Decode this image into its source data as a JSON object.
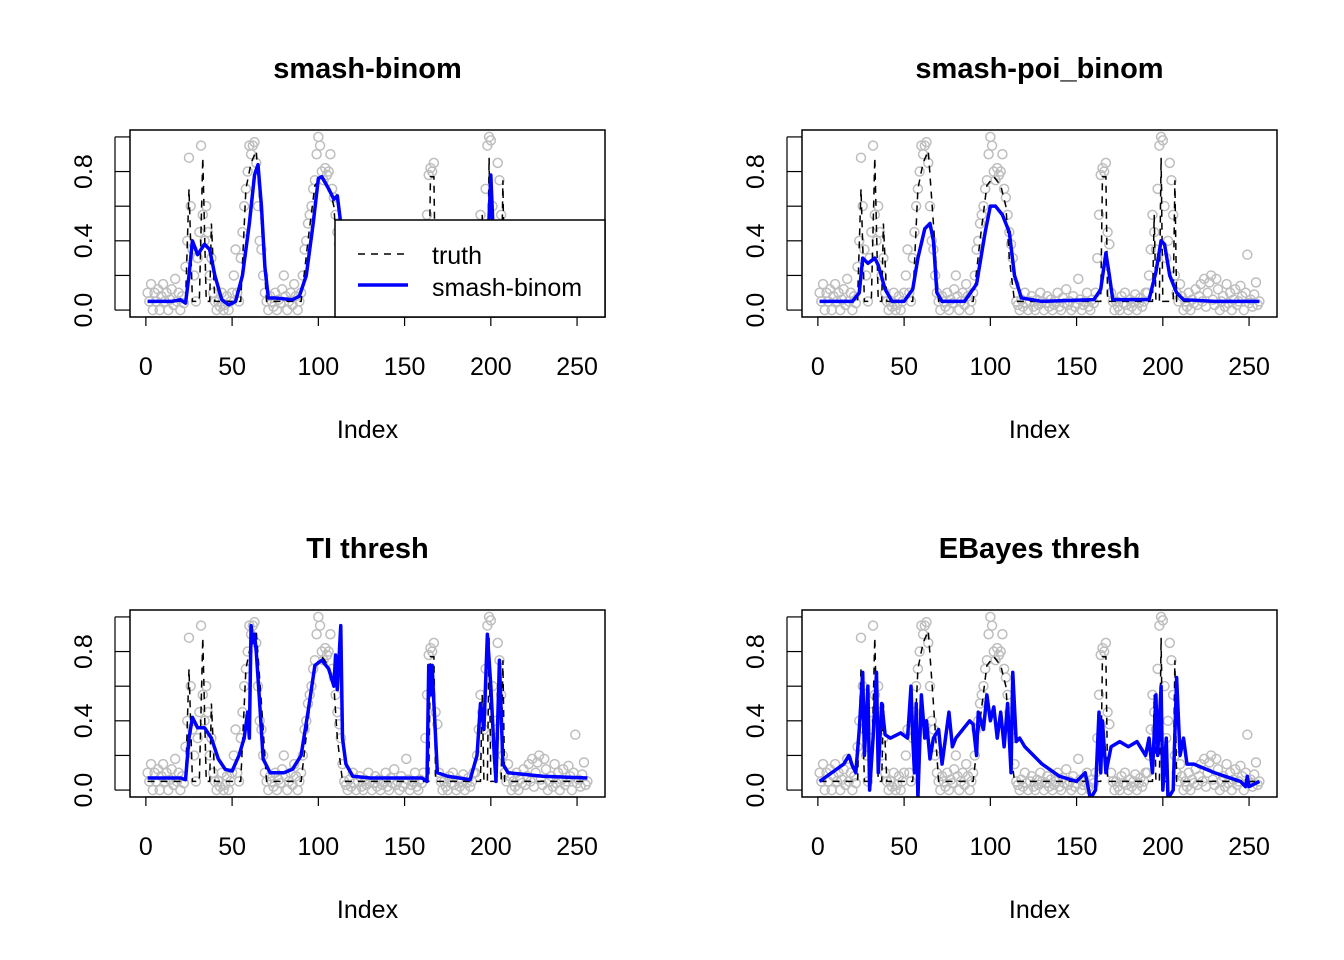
{
  "chart_data": [
    {
      "type": "line",
      "title": "smash-binom",
      "xlabel": "Index",
      "ylabel": "",
      "xlim": [
        1,
        256
      ],
      "ylim": [
        0,
        1
      ],
      "x_ticks": [
        "0",
        "50",
        "100",
        "150",
        "200",
        "250"
      ],
      "y_ticks": [
        "0.0",
        "0.4",
        "0.8"
      ],
      "legend": {
        "position": "bottom-right",
        "entries": [
          "truth",
          "smash-binom"
        ]
      },
      "estimate": [
        [
          1,
          0.05
        ],
        [
          15,
          0.05
        ],
        [
          20,
          0.06
        ],
        [
          23,
          0.04
        ],
        [
          25,
          0.2
        ],
        [
          27,
          0.4
        ],
        [
          30,
          0.32
        ],
        [
          34,
          0.38
        ],
        [
          37,
          0.35
        ],
        [
          40,
          0.2
        ],
        [
          44,
          0.06
        ],
        [
          48,
          0.03
        ],
        [
          52,
          0.05
        ],
        [
          56,
          0.2
        ],
        [
          60,
          0.5
        ],
        [
          63,
          0.78
        ],
        [
          65,
          0.84
        ],
        [
          67,
          0.6
        ],
        [
          69,
          0.25
        ],
        [
          71,
          0.07
        ],
        [
          75,
          0.07
        ],
        [
          85,
          0.06
        ],
        [
          89,
          0.08
        ],
        [
          93,
          0.2
        ],
        [
          97,
          0.5
        ],
        [
          100,
          0.76
        ],
        [
          102,
          0.77
        ],
        [
          106,
          0.7
        ],
        [
          109,
          0.64
        ],
        [
          111,
          0.66
        ],
        [
          113,
          0.5
        ],
        [
          116,
          0.2
        ],
        [
          120,
          0.08
        ],
        [
          160,
          0.06
        ],
        [
          164,
          0.1
        ],
        [
          167,
          0.3
        ],
        [
          170,
          0.08
        ],
        [
          195,
          0.06
        ],
        [
          198,
          0.3
        ],
        [
          200,
          0.78
        ],
        [
          202,
          0.3
        ],
        [
          205,
          0.12
        ],
        [
          210,
          0.08
        ],
        [
          256,
          0.05
        ]
      ]
    },
    {
      "type": "line",
      "title": "smash-poi_binom",
      "xlabel": "Index",
      "ylabel": "",
      "xlim": [
        1,
        256
      ],
      "ylim": [
        0,
        1
      ],
      "x_ticks": [
        "0",
        "50",
        "100",
        "150",
        "200",
        "250"
      ],
      "y_ticks": [
        "0.0",
        "0.4",
        "0.8"
      ],
      "estimate": [
        [
          1,
          0.05
        ],
        [
          20,
          0.05
        ],
        [
          24,
          0.1
        ],
        [
          26,
          0.3
        ],
        [
          29,
          0.27
        ],
        [
          33,
          0.3
        ],
        [
          35,
          0.26
        ],
        [
          39,
          0.12
        ],
        [
          43,
          0.05
        ],
        [
          50,
          0.05
        ],
        [
          55,
          0.12
        ],
        [
          58,
          0.3
        ],
        [
          62,
          0.47
        ],
        [
          65,
          0.5
        ],
        [
          67,
          0.4
        ],
        [
          69,
          0.1
        ],
        [
          72,
          0.05
        ],
        [
          85,
          0.05
        ],
        [
          92,
          0.15
        ],
        [
          97,
          0.45
        ],
        [
          100,
          0.6
        ],
        [
          103,
          0.6
        ],
        [
          107,
          0.55
        ],
        [
          111,
          0.45
        ],
        [
          114,
          0.2
        ],
        [
          118,
          0.07
        ],
        [
          130,
          0.05
        ],
        [
          160,
          0.06
        ],
        [
          164,
          0.12
        ],
        [
          167,
          0.33
        ],
        [
          169,
          0.2
        ],
        [
          171,
          0.06
        ],
        [
          192,
          0.06
        ],
        [
          196,
          0.22
        ],
        [
          199,
          0.4
        ],
        [
          201,
          0.38
        ],
        [
          204,
          0.2
        ],
        [
          208,
          0.1
        ],
        [
          212,
          0.06
        ],
        [
          230,
          0.05
        ],
        [
          256,
          0.05
        ]
      ]
    },
    {
      "type": "line",
      "title": "TI thresh",
      "xlabel": "Index",
      "ylabel": "",
      "xlim": [
        1,
        256
      ],
      "ylim": [
        0,
        1
      ],
      "x_ticks": [
        "0",
        "50",
        "100",
        "150",
        "200",
        "250"
      ],
      "y_ticks": [
        "0.0",
        "0.4",
        "0.8"
      ],
      "estimate": [
        [
          1,
          0.07
        ],
        [
          20,
          0.07
        ],
        [
          23,
          0.06
        ],
        [
          25,
          0.3
        ],
        [
          27,
          0.42
        ],
        [
          30,
          0.36
        ],
        [
          34,
          0.36
        ],
        [
          38,
          0.3
        ],
        [
          42,
          0.18
        ],
        [
          46,
          0.12
        ],
        [
          50,
          0.11
        ],
        [
          54,
          0.2
        ],
        [
          57,
          0.3
        ],
        [
          59,
          0.45
        ],
        [
          60,
          0.3
        ],
        [
          61,
          0.95
        ],
        [
          62,
          0.85
        ],
        [
          63,
          0.9
        ],
        [
          64,
          0.8
        ],
        [
          66,
          0.5
        ],
        [
          68,
          0.18
        ],
        [
          72,
          0.1
        ],
        [
          80,
          0.1
        ],
        [
          85,
          0.12
        ],
        [
          90,
          0.2
        ],
        [
          94,
          0.45
        ],
        [
          98,
          0.72
        ],
        [
          102,
          0.75
        ],
        [
          106,
          0.7
        ],
        [
          109,
          0.6
        ],
        [
          110,
          0.78
        ],
        [
          111,
          0.58
        ],
        [
          113,
          0.95
        ],
        [
          114,
          0.3
        ],
        [
          116,
          0.15
        ],
        [
          120,
          0.08
        ],
        [
          130,
          0.07
        ],
        [
          160,
          0.07
        ],
        [
          163,
          0.05
        ],
        [
          164,
          0.72
        ],
        [
          165,
          0.55
        ],
        [
          166,
          0.72
        ],
        [
          167,
          0.5
        ],
        [
          169,
          0.1
        ],
        [
          175,
          0.08
        ],
        [
          188,
          0.06
        ],
        [
          192,
          0.2
        ],
        [
          194,
          0.5
        ],
        [
          196,
          0.35
        ],
        [
          198,
          0.9
        ],
        [
          200,
          0.6
        ],
        [
          202,
          0.2
        ],
        [
          203,
          0.05
        ],
        [
          205,
          0.75
        ],
        [
          207,
          0.15
        ],
        [
          210,
          0.1
        ],
        [
          230,
          0.08
        ],
        [
          256,
          0.07
        ]
      ]
    },
    {
      "type": "line",
      "title": "EBayes thresh",
      "xlabel": "Index",
      "ylabel": "",
      "xlim": [
        1,
        256
      ],
      "ylim": [
        0,
        1
      ],
      "x_ticks": [
        "0",
        "50",
        "100",
        "150",
        "200",
        "250"
      ],
      "y_ticks": [
        "0.0",
        "0.4",
        "0.8"
      ],
      "estimate": [
        [
          1,
          0.05
        ],
        [
          8,
          0.1
        ],
        [
          15,
          0.15
        ],
        [
          18,
          0.2
        ],
        [
          20,
          0.14
        ],
        [
          22,
          0.1
        ],
        [
          24,
          0.35
        ],
        [
          26,
          0.68
        ],
        [
          27,
          0.2
        ],
        [
          29,
          0.6
        ],
        [
          30,
          0.0
        ],
        [
          32,
          0.3
        ],
        [
          34,
          0.68
        ],
        [
          35,
          0.1
        ],
        [
          37,
          0.5
        ],
        [
          39,
          0.32
        ],
        [
          42,
          0.3
        ],
        [
          48,
          0.33
        ],
        [
          52,
          0.3
        ],
        [
          54,
          0.6
        ],
        [
          55,
          0.3
        ],
        [
          56,
          0.1
        ],
        [
          57,
          0.5
        ],
        [
          58,
          -0.05
        ],
        [
          60,
          0.55
        ],
        [
          62,
          0.3
        ],
        [
          63,
          0.4
        ],
        [
          65,
          0.18
        ],
        [
          67,
          0.3
        ],
        [
          70,
          0.35
        ],
        [
          72,
          0.15
        ],
        [
          74,
          0.3
        ],
        [
          76,
          0.45
        ],
        [
          78,
          0.25
        ],
        [
          80,
          0.3
        ],
        [
          84,
          0.35
        ],
        [
          88,
          0.4
        ],
        [
          90,
          0.38
        ],
        [
          92,
          0.2
        ],
        [
          93,
          0.45
        ],
        [
          96,
          0.35
        ],
        [
          98,
          0.55
        ],
        [
          100,
          0.4
        ],
        [
          102,
          0.48
        ],
        [
          104,
          0.3
        ],
        [
          106,
          0.45
        ],
        [
          108,
          0.25
        ],
        [
          110,
          0.5
        ],
        [
          112,
          0.1
        ],
        [
          113,
          0.68
        ],
        [
          115,
          0.28
        ],
        [
          117,
          0.3
        ],
        [
          120,
          0.25
        ],
        [
          130,
          0.15
        ],
        [
          140,
          0.08
        ],
        [
          150,
          0.05
        ],
        [
          155,
          0.1
        ],
        [
          158,
          -0.05
        ],
        [
          161,
          0.0
        ],
        [
          163,
          0.45
        ],
        [
          164,
          0.1
        ],
        [
          165,
          0.4
        ],
        [
          167,
          0.1
        ],
        [
          170,
          0.25
        ],
        [
          175,
          0.28
        ],
        [
          180,
          0.25
        ],
        [
          185,
          0.28
        ],
        [
          190,
          0.2
        ],
        [
          192,
          0.3
        ],
        [
          194,
          0.1
        ],
        [
          196,
          0.55
        ],
        [
          197,
          0.2
        ],
        [
          199,
          0.6
        ],
        [
          200,
          0.0
        ],
        [
          202,
          0.3
        ],
        [
          203,
          -0.05
        ],
        [
          206,
          0.0
        ],
        [
          208,
          0.65
        ],
        [
          210,
          0.2
        ],
        [
          212,
          0.3
        ],
        [
          214,
          0.15
        ],
        [
          218,
          0.15
        ],
        [
          230,
          0.1
        ],
        [
          245,
          0.05
        ],
        [
          248,
          0.02
        ],
        [
          249,
          0.08
        ],
        [
          250,
          0.02
        ],
        [
          256,
          0.05
        ]
      ]
    }
  ],
  "truth": [
    [
      1,
      0.05
    ],
    [
      23,
      0.05
    ],
    [
      25,
      0.7
    ],
    [
      27,
      0.05
    ],
    [
      31,
      0.05
    ],
    [
      33,
      0.88
    ],
    [
      35,
      0.05
    ],
    [
      37,
      0.05
    ],
    [
      38,
      0.5
    ],
    [
      40,
      0.05
    ],
    [
      55,
      0.05
    ],
    [
      58,
      0.7
    ],
    [
      61,
      0.85
    ],
    [
      64,
      0.92
    ],
    [
      67,
      0.5
    ],
    [
      70,
      0.05
    ],
    [
      90,
      0.05
    ],
    [
      94,
      0.4
    ],
    [
      98,
      0.72
    ],
    [
      102,
      0.77
    ],
    [
      106,
      0.72
    ],
    [
      109,
      0.6
    ],
    [
      111,
      0.3
    ],
    [
      114,
      0.05
    ],
    [
      164,
      0.05
    ],
    [
      165,
      0.77
    ],
    [
      167,
      0.77
    ],
    [
      168,
      0.05
    ],
    [
      194,
      0.05
    ],
    [
      195,
      0.55
    ],
    [
      196,
      0.05
    ],
    [
      198,
      0.05
    ],
    [
      199,
      0.88
    ],
    [
      200,
      0.05
    ],
    [
      206,
      0.05
    ],
    [
      207,
      0.75
    ],
    [
      208,
      0.05
    ],
    [
      256,
      0.05
    ]
  ],
  "observed": [
    0.1,
    0.05,
    0.15,
    0,
    0.1,
    0.05,
    0.12,
    0.0,
    0.08,
    0.15,
    0.05,
    0.1,
    0.0,
    0.06,
    0.12,
    0.03,
    0.18,
    0.05,
    0.1,
    0.0,
    0.08,
    0.04,
    0.25,
    0.4,
    0.88,
    0.6,
    0.35,
    0.2,
    0.05,
    0.3,
    0.45,
    0.95,
    0.55,
    0.4,
    0.6,
    0.45,
    0.2,
    0.3,
    0.1,
    0.05,
    0.0,
    0.05,
    0.02,
    0.1,
    0.0,
    0.03,
    0.08,
    0.0,
    0.05,
    0.1,
    0.2,
    0.35,
    0.1,
    0.05,
    0.3,
    0.45,
    0.6,
    0.7,
    0.8,
    0.95,
    0.9,
    0.95,
    0.97,
    0.85,
    0.6,
    0.4,
    0.35,
    0.2,
    0.1,
    0.05,
    0.0,
    0.08,
    0.05,
    0.02,
    0.1,
    0.0,
    0.06,
    0.04,
    0.12,
    0.2,
    0.08,
    0.0,
    0.05,
    0.1,
    0.03,
    0.15,
    0.08,
    0.0,
    0.05,
    0.1,
    0.2,
    0.35,
    0.4,
    0.5,
    0.55,
    0.6,
    0.7,
    0.75,
    0.9,
    1.0,
    0.95,
    0.8,
    0.75,
    0.82,
    0.78,
    0.8,
    0.9,
    0.7,
    0.65,
    0.55,
    0.45,
    0.38,
    0.3,
    0.15,
    0.05,
    0.03,
    0.0,
    0.06,
    0.02,
    0.1,
    0.04,
    0.0,
    0.05,
    0.08,
    0.02,
    0.0,
    0.06,
    0.03,
    0.1,
    0.05,
    0.0,
    0.04,
    0.08,
    0.02,
    0.06,
    0.0,
    0.03,
    0.05,
    0.1,
    0.02,
    0.0,
    0.07,
    0.04,
    0.12,
    0.03,
    0.05,
    0.0,
    0.08,
    0.02,
    0.04,
    0.18,
    0.06,
    0.0,
    0.03,
    0.05,
    0.1,
    0.02,
    0.0,
    0.06,
    0.04,
    0.1,
    0.3,
    0.55,
    0.78,
    0.82,
    0.8,
    0.85,
    0.45,
    0.38,
    0.1,
    0.05,
    0.0,
    0.05,
    0.02,
    0.0,
    0.08,
    0.04,
    0.1,
    0.03,
    0.0,
    0.06,
    0.02,
    0.05,
    0.09,
    0.0,
    0.04,
    0.07,
    0.02,
    0.05,
    0.1,
    0.1,
    0.2,
    0.35,
    0.55,
    0.45,
    0.35,
    0.7,
    0.95,
    1.0,
    0.98,
    0.6,
    0.3,
    0.4,
    0.85,
    0.75,
    0.55,
    0.2,
    0.1,
    0.05,
    0.15,
    0.08,
    0.0,
    0.05,
    0.02,
    0.1,
    0.0,
    0.06,
    0.04,
    0.12,
    0.03,
    0.08,
    0.15,
    0.05,
    0.18,
    0.02,
    0.1,
    0.16,
    0.2,
    0.06,
    0.03,
    0.18,
    0.12,
    0.0,
    0.05,
    0.08,
    0.02,
    0.15,
    0.04,
    0.1,
    0.0,
    0.06,
    0.12,
    0.03,
    0.05,
    0.14,
    0.08,
    0.0,
    0.1,
    0.32,
    0.04,
    0.06,
    0.02,
    0.09,
    0.16,
    0.03,
    0.05
  ],
  "colors": {
    "estimate": "#0000ff",
    "truth": "#000000",
    "observed": "#bebebe"
  }
}
